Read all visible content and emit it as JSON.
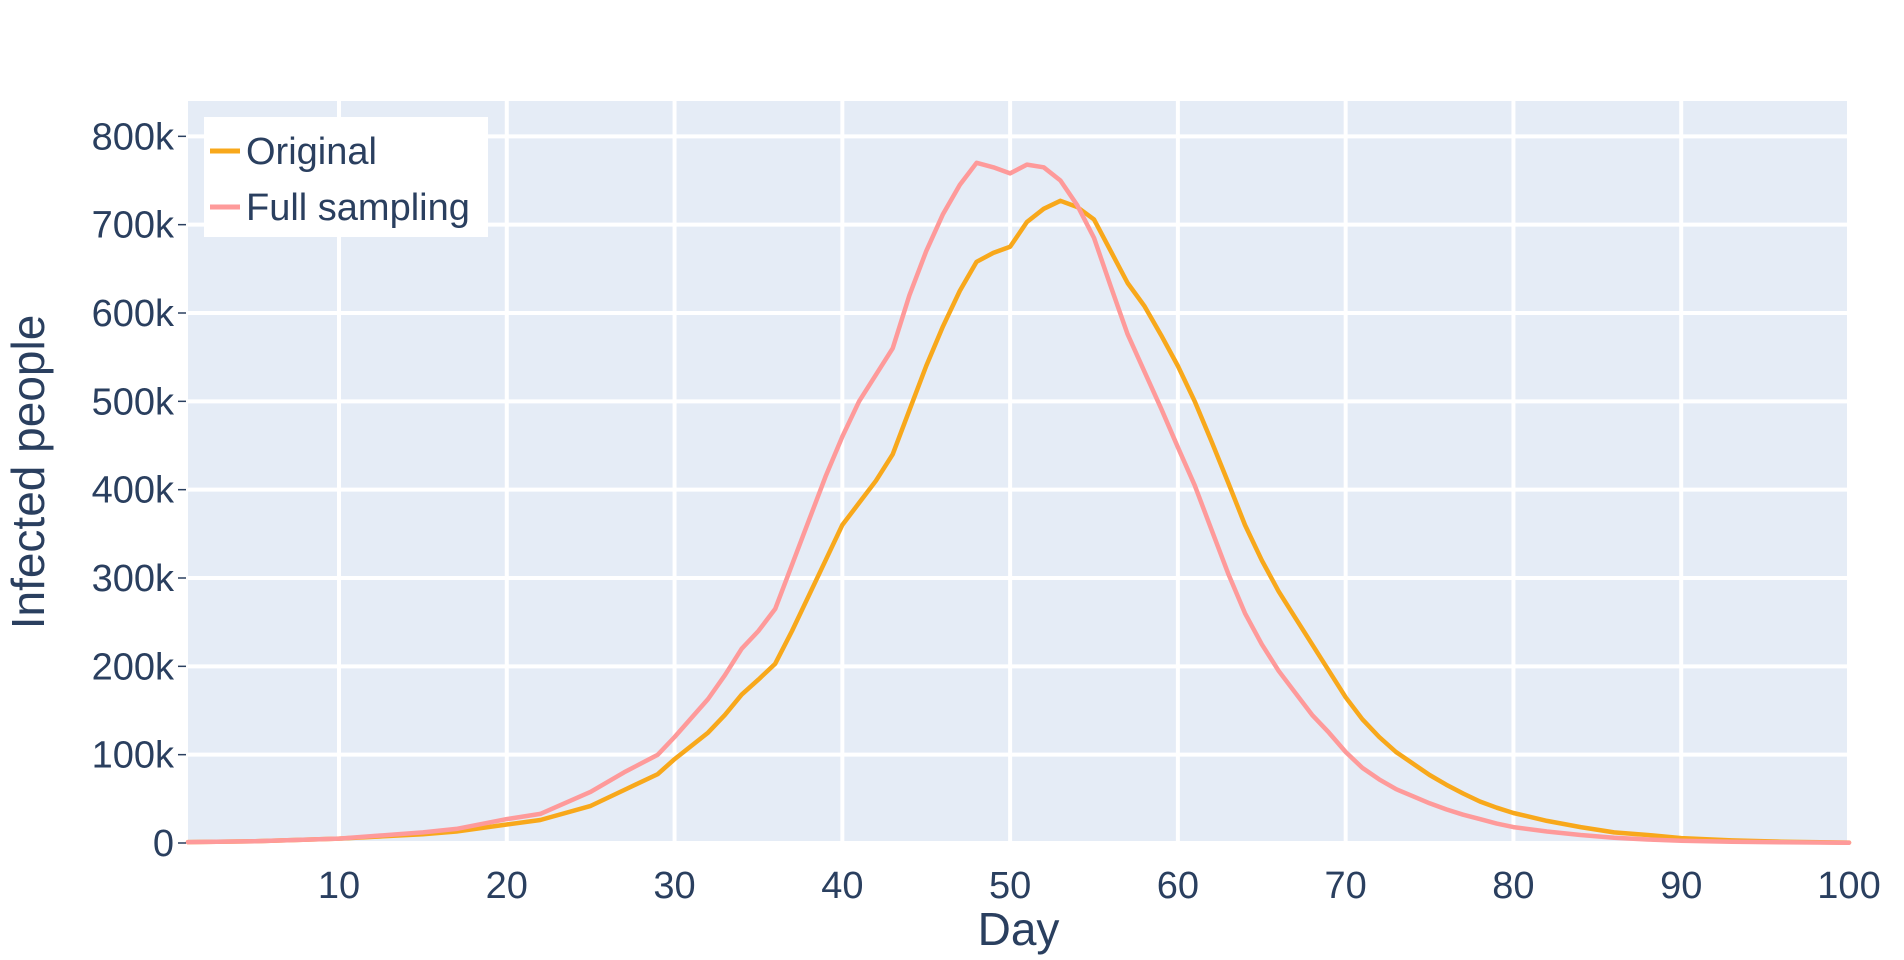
{
  "chart_data": {
    "type": "line",
    "title": "",
    "xlabel": "Day",
    "ylabel": "Infected people",
    "xlim": [
      1,
      100
    ],
    "ylim": [
      0,
      840000
    ],
    "x_ticks": [
      10,
      20,
      30,
      40,
      50,
      60,
      70,
      80,
      90,
      100
    ],
    "x_tick_labels": [
      "10",
      "20",
      "30",
      "40",
      "50",
      "60",
      "70",
      "80",
      "90",
      "100"
    ],
    "y_ticks": [
      0,
      100000,
      200000,
      300000,
      400000,
      500000,
      600000,
      700000,
      800000
    ],
    "y_tick_labels": [
      "0",
      "100k",
      "200k",
      "300k",
      "400k",
      "500k",
      "600k",
      "700k",
      "800k"
    ],
    "grid": true,
    "legend_position": "top-left",
    "plot_background": "#e5ecf6",
    "series": [
      {
        "name": "Original",
        "color": "#f8a81b",
        "x": [
          1,
          5,
          10,
          15,
          17,
          20,
          22,
          25,
          27,
          29,
          30,
          32,
          33,
          34,
          35,
          36,
          37,
          38,
          39,
          40,
          41,
          42,
          43,
          44,
          45,
          46,
          47,
          48,
          49,
          50,
          51,
          52,
          53,
          54,
          55,
          56,
          57,
          58,
          59,
          60,
          61,
          62,
          63,
          64,
          65,
          66,
          67,
          68,
          69,
          70,
          71,
          72,
          73,
          74,
          75,
          76,
          77,
          78,
          79,
          80,
          82,
          84,
          86,
          88,
          90,
          93,
          96,
          100
        ],
        "y": [
          1000,
          2000,
          5000,
          10000,
          13000,
          21000,
          26000,
          42000,
          60000,
          78000,
          95000,
          125000,
          145000,
          168000,
          185000,
          203000,
          240000,
          280000,
          320000,
          360000,
          385000,
          410000,
          440000,
          490000,
          540000,
          585000,
          625000,
          658000,
          668000,
          675000,
          703000,
          718000,
          727000,
          720000,
          706000,
          670000,
          634000,
          608000,
          575000,
          540000,
          500000,
          455000,
          408000,
          360000,
          320000,
          285000,
          255000,
          225000,
          195000,
          165000,
          140000,
          120000,
          103000,
          90000,
          77000,
          66000,
          56000,
          47000,
          40000,
          34000,
          25000,
          18000,
          12000,
          9000,
          5500,
          3000,
          1500,
          500
        ]
      },
      {
        "name": "Full sampling",
        "color": "#fe9a9a",
        "x": [
          1,
          5,
          10,
          15,
          17,
          20,
          22,
          25,
          27,
          29,
          30,
          32,
          33,
          34,
          35,
          36,
          37,
          38,
          39,
          40,
          41,
          42,
          43,
          44,
          45,
          46,
          47,
          48,
          49,
          50,
          51,
          52,
          53,
          54,
          55,
          56,
          57,
          58,
          59,
          60,
          61,
          62,
          63,
          64,
          65,
          66,
          67,
          68,
          69,
          70,
          71,
          72,
          73,
          74,
          75,
          76,
          77,
          78,
          79,
          80,
          82,
          84,
          86,
          88,
          90,
          93,
          96,
          100
        ],
        "y": [
          1000,
          2000,
          5000,
          12000,
          16000,
          27000,
          33000,
          58000,
          80000,
          100000,
          120000,
          163000,
          190000,
          220000,
          240000,
          265000,
          315000,
          365000,
          415000,
          460000,
          500000,
          530000,
          560000,
          620000,
          670000,
          712000,
          745000,
          770000,
          765000,
          758000,
          768000,
          765000,
          750000,
          722000,
          685000,
          630000,
          576000,
          534000,
          492000,
          448000,
          405000,
          355000,
          305000,
          260000,
          225000,
          195000,
          170000,
          145000,
          125000,
          103000,
          85000,
          72000,
          61000,
          53000,
          45000,
          38000,
          32000,
          27000,
          22000,
          18000,
          13000,
          9000,
          6000,
          4000,
          2500,
          1500,
          800,
          300
        ]
      }
    ]
  }
}
